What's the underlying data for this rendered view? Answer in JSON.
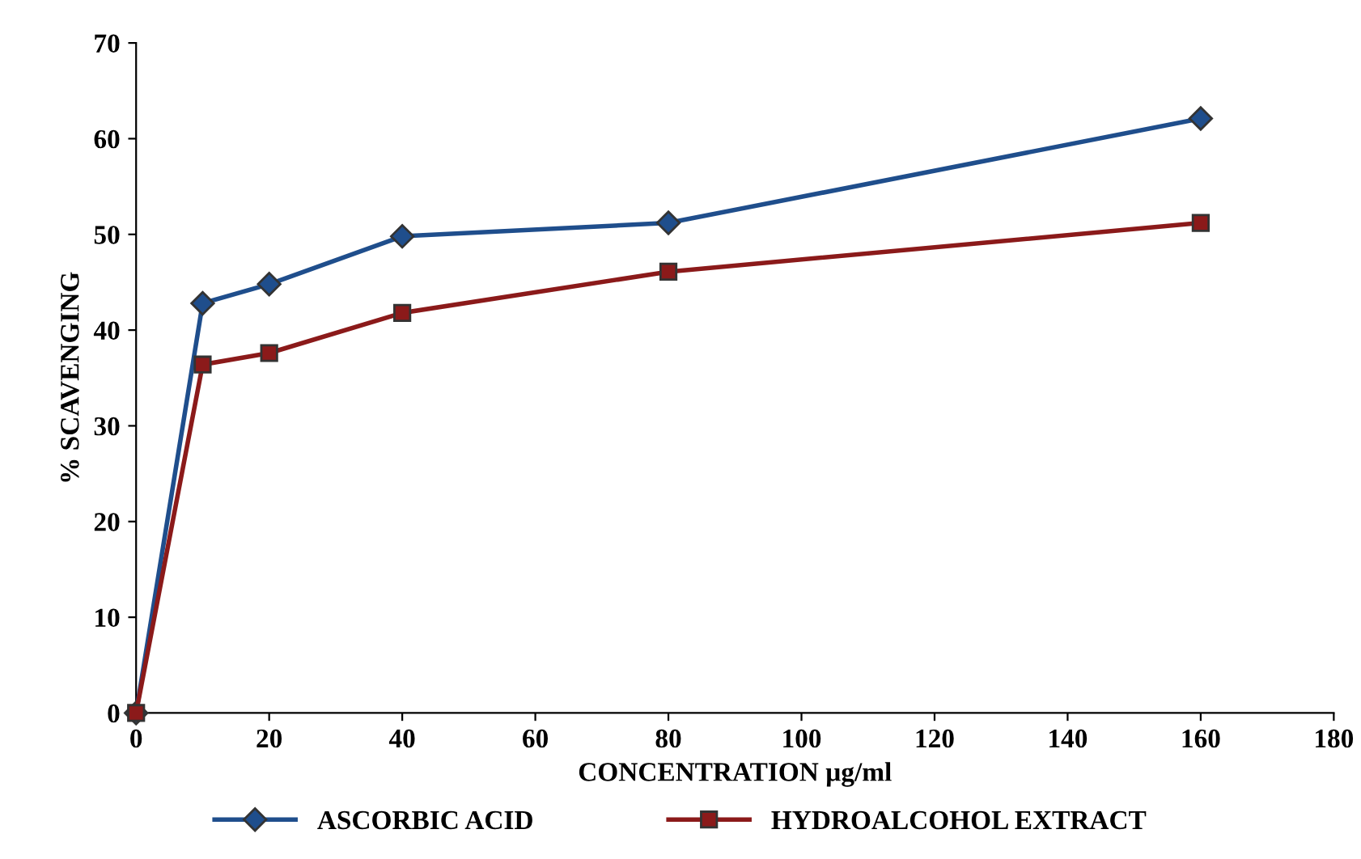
{
  "chart_data": {
    "type": "line",
    "xlabel": "CONCENTRATION µg/ml",
    "ylabel": "% SCAVENGING",
    "x": [
      0,
      10,
      20,
      40,
      80,
      160
    ],
    "series": [
      {
        "name": "ASCORBIC ACID",
        "color": "#1f4e8c",
        "marker": "diamond",
        "values": [
          0,
          42.8,
          44.8,
          49.8,
          51.2,
          62.1
        ]
      },
      {
        "name": "HYDROALCOHOL EXTRACT",
        "color": "#8b1a1a",
        "marker": "square",
        "values": [
          0,
          36.4,
          37.6,
          41.8,
          46.1,
          51.2
        ]
      }
    ],
    "xlim": [
      0,
      180
    ],
    "xticks": [
      0,
      20,
      40,
      60,
      80,
      100,
      120,
      140,
      160,
      180
    ],
    "ylim": [
      0,
      70
    ],
    "yticks": [
      0,
      10,
      20,
      30,
      40,
      50,
      60,
      70
    ],
    "grid": false,
    "legend": "bottom"
  }
}
